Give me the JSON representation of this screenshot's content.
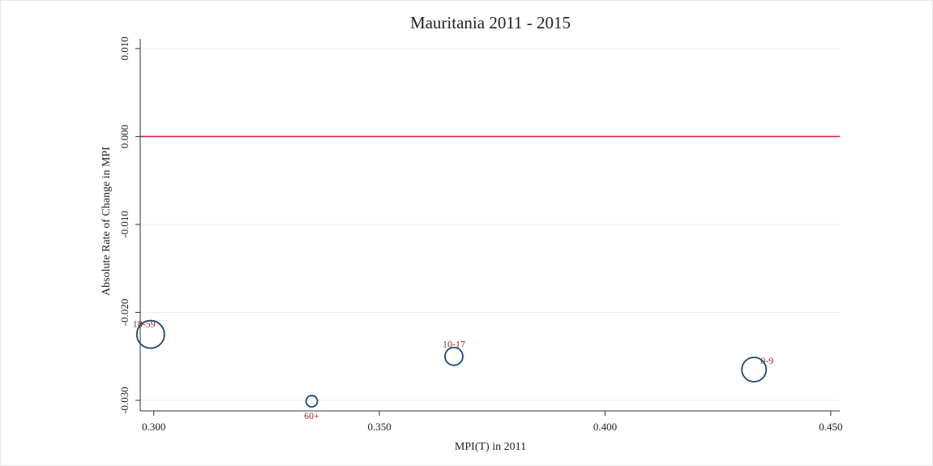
{
  "chart_data": {
    "type": "bubble",
    "title": "Mauritania 2011 - 2015",
    "x_label": "MPI(T) in 2011",
    "y_label": "Absolute Rate of Change in MPI",
    "labels": [
      "18-59",
      "60+",
      "10-17",
      "0-9"
    ],
    "x": [
      0.2993,
      0.335,
      0.3665,
      0.433
    ],
    "values": [
      -0.0225,
      -0.0301,
      -0.025,
      -0.0265
    ],
    "sizes": [
      0.4,
      0.068,
      0.167,
      0.311
    ],
    "color": "#1a476f",
    "label_color": "#8b2a2a",
    "xlim": [
      0.297,
      0.452
    ],
    "xticks": [
      {
        "value": 0.3,
        "label": "0.300"
      },
      {
        "value": 0.35,
        "label": "0.350"
      },
      {
        "value": 0.4,
        "label": "0.400"
      },
      {
        "value": 0.45,
        "label": "0.450"
      }
    ],
    "ylim": [
      -0.0312,
      0.0111
    ],
    "yticks": [
      {
        "value": -0.03,
        "label": "-0.030"
      },
      {
        "value": -0.02,
        "label": "-0.020"
      },
      {
        "value": -0.01,
        "label": "-0.010"
      },
      {
        "value": 0,
        "label": "0.000"
      },
      {
        "value": 0.01,
        "label": "0.010"
      }
    ],
    "grid": true,
    "reference_line": {
      "value": 0,
      "color": "#d6204a"
    }
  }
}
